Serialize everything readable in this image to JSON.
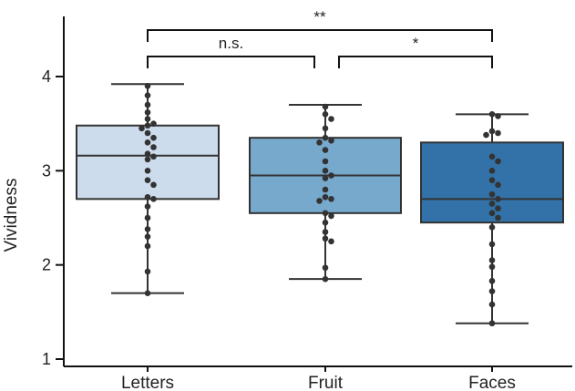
{
  "chart_data": {
    "type": "box",
    "ylabel": "Vividness",
    "ylim": [
      1,
      4.7
    ],
    "yticks": [
      1,
      2,
      3,
      4
    ],
    "categories": [
      "Letters",
      "Fruit",
      "Faces"
    ],
    "boxes": [
      {
        "name": "Letters",
        "color": "#ccdcec",
        "whisker_low": 1.7,
        "q1": 2.7,
        "median": 3.16,
        "q3": 3.48,
        "whisker_high": 3.92,
        "points": [
          3.9,
          3.8,
          3.7,
          3.62,
          3.55,
          3.5,
          3.48,
          3.45,
          3.4,
          3.35,
          3.3,
          3.25,
          3.18,
          3.15,
          3.12,
          3.0,
          2.9,
          2.85,
          2.72,
          2.7,
          2.62,
          2.5,
          2.38,
          2.3,
          2.2,
          1.93,
          1.7
        ]
      },
      {
        "name": "Fruit",
        "color": "#77a9cc",
        "whisker_low": 1.85,
        "q1": 2.55,
        "median": 2.95,
        "q3": 3.35,
        "whisker_high": 3.7,
        "points": [
          3.68,
          3.6,
          3.55,
          3.45,
          3.35,
          3.32,
          3.3,
          3.22,
          3.1,
          3.0,
          2.95,
          2.92,
          2.8,
          2.72,
          2.7,
          2.68,
          2.55,
          2.52,
          2.45,
          2.35,
          2.28,
          2.25,
          1.97,
          1.85
        ]
      },
      {
        "name": "Faces",
        "color": "#3272a8",
        "whisker_low": 1.38,
        "q1": 2.45,
        "median": 2.7,
        "q3": 3.3,
        "whisker_high": 3.6,
        "points": [
          3.6,
          3.58,
          3.42,
          3.4,
          3.38,
          3.15,
          3.1,
          3.0,
          2.9,
          2.85,
          2.75,
          2.7,
          2.65,
          2.6,
          2.55,
          2.5,
          2.4,
          2.22,
          2.05,
          1.98,
          1.83,
          1.72,
          1.58,
          1.38
        ]
      }
    ],
    "significance": [
      {
        "from": "Letters",
        "to": "Fruit",
        "label": "n.s.",
        "level": 1
      },
      {
        "from": "Fruit",
        "to": "Faces",
        "label": "*",
        "level": 1
      },
      {
        "from": "Letters",
        "to": "Faces",
        "label": "**",
        "level": 2
      }
    ],
    "colors": {
      "box_edge": "#333333",
      "point": "#333333",
      "axis": "#111111"
    }
  }
}
